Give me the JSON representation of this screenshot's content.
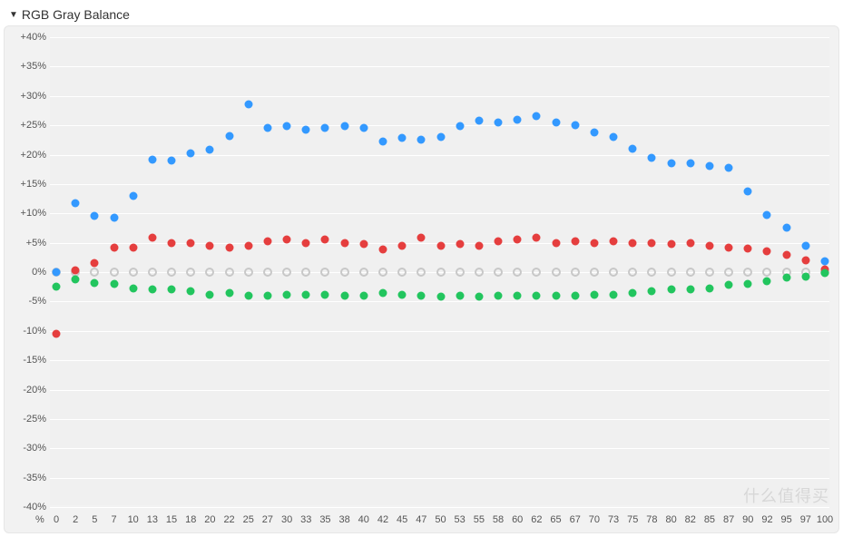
{
  "panel": {
    "title": "RGB Gray Balance",
    "disclosure_glyph": "▼"
  },
  "chart": {
    "type": "scatter",
    "background_color": "#f2f2f2",
    "plot_background": "#f0f0f0",
    "grid_color": "#ffffff",
    "border_color": "#e6e6e6",
    "ylim": [
      -40,
      40
    ],
    "ytick_step": 5,
    "yticks": [
      {
        "v": 40,
        "label": "+40%"
      },
      {
        "v": 35,
        "label": "+35%"
      },
      {
        "v": 30,
        "label": "+30%"
      },
      {
        "v": 25,
        "label": "+25%"
      },
      {
        "v": 20,
        "label": "+20%"
      },
      {
        "v": 15,
        "label": "+15%"
      },
      {
        "v": 10,
        "label": "+10%"
      },
      {
        "v": 5,
        "label": "+5%"
      },
      {
        "v": 0,
        "label": "0%"
      },
      {
        "v": -5,
        "label": "-5%"
      },
      {
        "v": -10,
        "label": "-10%"
      },
      {
        "v": -15,
        "label": "-15%"
      },
      {
        "v": -20,
        "label": "-20%"
      },
      {
        "v": -25,
        "label": "-25%"
      },
      {
        "v": -30,
        "label": "-30%"
      },
      {
        "v": -35,
        "label": "-35%"
      },
      {
        "v": -40,
        "label": "-40%"
      }
    ],
    "x_axis_label": "%",
    "categories": [
      "0",
      "2",
      "5",
      "7",
      "10",
      "13",
      "15",
      "18",
      "20",
      "22",
      "25",
      "27",
      "30",
      "33",
      "35",
      "38",
      "40",
      "42",
      "45",
      "47",
      "50",
      "53",
      "55",
      "58",
      "60",
      "62",
      "65",
      "67",
      "70",
      "73",
      "75",
      "78",
      "80",
      "82",
      "85",
      "87",
      "90",
      "92",
      "95",
      "97",
      "100"
    ],
    "marker_radius": 4.5,
    "ref_marker": {
      "stroke": "#c8c8c8",
      "y": 0
    },
    "series": [
      {
        "name": "blue",
        "color": "#3399ff",
        "values": [
          0.0,
          11.8,
          9.5,
          9.2,
          13.0,
          19.2,
          19.0,
          20.2,
          20.8,
          23.2,
          28.5,
          24.5,
          24.8,
          24.2,
          24.5,
          24.8,
          24.5,
          22.2,
          22.8,
          22.5,
          23.0,
          24.8,
          25.8,
          25.5,
          26.0,
          26.5,
          25.5,
          25.0,
          23.8,
          23.0,
          21.0,
          19.5,
          18.5,
          18.5,
          18.0,
          17.8,
          13.8,
          9.8,
          7.5,
          4.5,
          1.8
        ]
      },
      {
        "name": "red",
        "color": "#e53e3e",
        "values": [
          -10.5,
          0.3,
          1.5,
          4.2,
          4.2,
          5.8,
          5.0,
          5.0,
          4.5,
          4.2,
          4.5,
          5.2,
          5.5,
          5.0,
          5.5,
          5.0,
          4.8,
          3.8,
          4.5,
          5.8,
          4.5,
          4.8,
          4.5,
          5.2,
          5.5,
          5.8,
          5.0,
          5.2,
          5.0,
          5.2,
          5.0,
          5.0,
          4.8,
          5.0,
          4.5,
          4.2,
          4.0,
          3.5,
          3.0,
          2.0,
          0.5
        ]
      },
      {
        "name": "green",
        "color": "#22c55e",
        "values": [
          -2.5,
          -1.2,
          -1.8,
          -2.0,
          -2.8,
          -3.0,
          -3.0,
          -3.2,
          -3.8,
          -3.5,
          -4.0,
          -4.0,
          -3.8,
          -3.8,
          -3.8,
          -4.0,
          -4.0,
          -3.5,
          -3.8,
          -4.0,
          -4.2,
          -4.0,
          -4.2,
          -4.0,
          -4.0,
          -4.0,
          -4.0,
          -4.0,
          -3.8,
          -3.8,
          -3.5,
          -3.2,
          -3.0,
          -3.0,
          -2.8,
          -2.2,
          -2.0,
          -1.5,
          -1.0,
          -0.8,
          -0.2
        ]
      }
    ]
  },
  "watermark": "什么值得买"
}
